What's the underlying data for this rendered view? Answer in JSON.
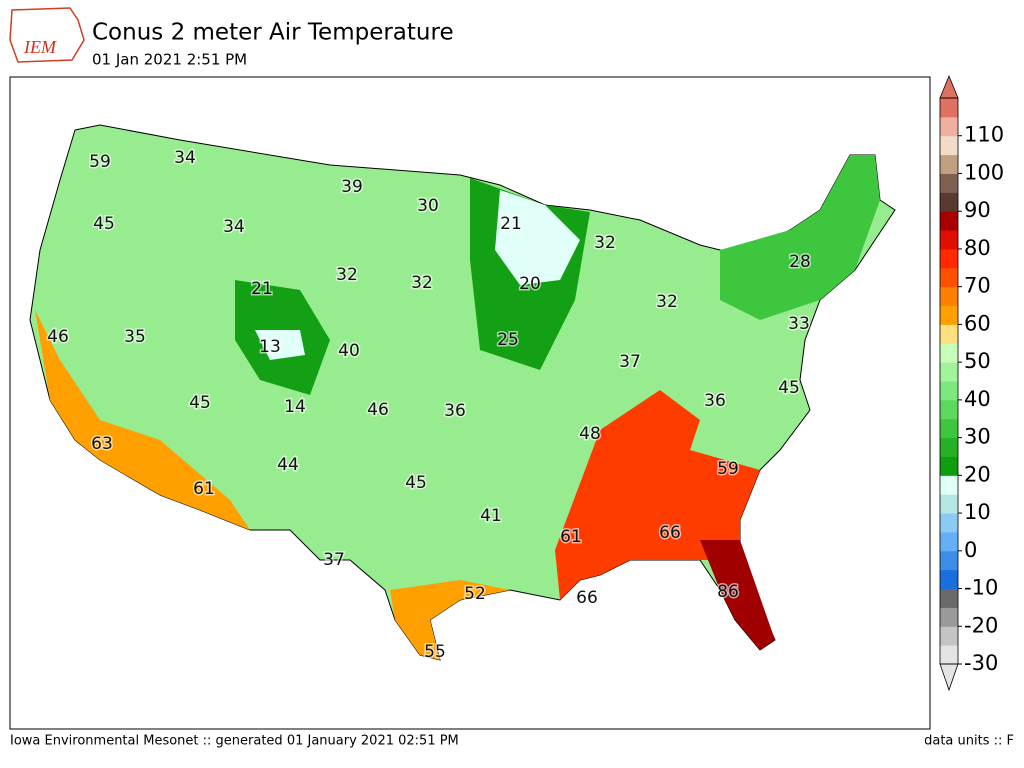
{
  "header": {
    "logo": "IEM",
    "title": "Conus 2 meter Air Temperature",
    "subtitle": "01 Jan 2021 2:51 PM"
  },
  "map": {
    "stations": [
      59,
      34,
      39,
      30,
      21,
      32,
      45,
      34,
      21,
      32,
      32,
      20,
      28,
      32,
      46,
      35,
      13,
      40,
      25,
      33,
      37,
      45,
      14,
      46,
      36,
      36,
      45,
      63,
      48,
      59,
      44,
      61,
      45,
      41,
      61,
      66,
      37,
      52,
      66,
      86,
      55
    ]
  },
  "colorbar": {
    "lim": [
      -30,
      120
    ],
    "ticks": [
      -30,
      -20,
      -10,
      0,
      10,
      20,
      30,
      40,
      50,
      60,
      70,
      80,
      90,
      100,
      110
    ],
    "colors": [
      "#e4e4e4",
      "#c4c4c4",
      "#9a9a9a",
      "#6a6a6a",
      "#1a6fdf",
      "#3c8ee8",
      "#64b0f4",
      "#8ccaf4",
      "#b4e6e4",
      "#e0fff8",
      "#0e9e0e",
      "#26b026",
      "#3ec63e",
      "#5cd85c",
      "#7de87d",
      "#a2f49a",
      "#c8ffb8",
      "#ffe080",
      "#ffa000",
      "#ff8000",
      "#ff5000",
      "#ff2a00",
      "#e01000",
      "#a80000",
      "#5a3a30",
      "#806050",
      "#c0a080",
      "#f0dcc8",
      "#f0b0a0",
      "#e07060"
    ]
  },
  "footer": {
    "left": "Iowa Environmental Mesonet :: generated 01 January 2021 02:51 PM",
    "right": "data units :: F"
  }
}
